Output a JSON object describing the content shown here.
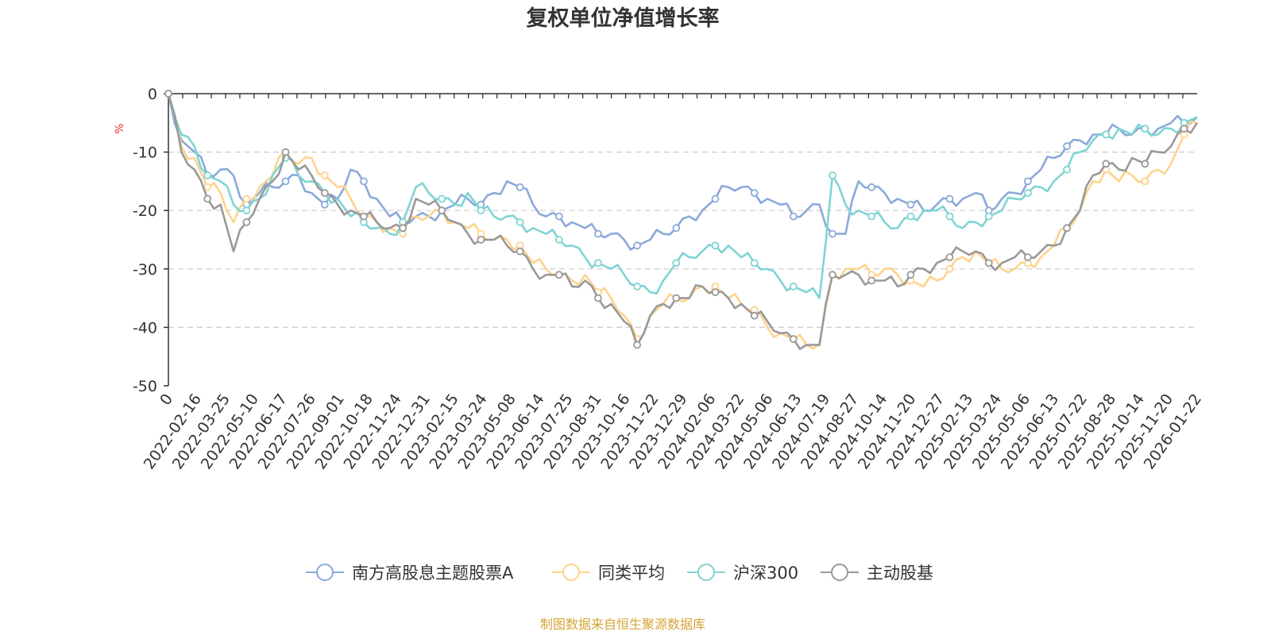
{
  "chart_data": {
    "type": "line",
    "title": "复权单位净值增长率",
    "unit_label": "%",
    "ylim": [
      -50,
      0
    ],
    "y_ticks": [
      0,
      -10,
      -20,
      -30,
      -40,
      -50
    ],
    "y_tick_labels": [
      "0",
      "-10",
      "-20",
      "-30",
      "-40",
      "-50"
    ],
    "x_tick_labels": [
      "0",
      "2022-02-16",
      "2022-03-25",
      "2022-05-10",
      "2022-06-17",
      "2022-07-26",
      "2022-09-01",
      "2022-10-18",
      "2022-11-24",
      "2022-12-31",
      "2023-02-15",
      "2023-03-24",
      "2023-05-08",
      "2023-06-14",
      "2023-07-25",
      "2023-08-31",
      "2023-10-16",
      "2023-11-22",
      "2023-12-29",
      "2024-02-06",
      "2024-03-22",
      "2024-05-06",
      "2024-06-13",
      "2024-07-19",
      "2024-08-27",
      "2024-10-14",
      "2024-11-20",
      "2024-12-27",
      "2025-02-13",
      "2025-03-24",
      "2025-05-06",
      "2025-06-13",
      "2025-07-22",
      "2025-08-28",
      "2025-10-14",
      "2025-11-20",
      "2026-01-22"
    ],
    "grid": "horizontal-dashed",
    "legend_position": "bottom",
    "series": [
      {
        "name": "南方高股息主题股票A",
        "color": "#8ba9d9",
        "values": [
          0,
          -8,
          -10,
          -14,
          -13,
          -14,
          -19,
          -17,
          -16,
          -15,
          -14,
          -17,
          -19,
          -18,
          -13,
          -15,
          -18,
          -21,
          -22,
          -21,
          -21,
          -20,
          -19,
          -18,
          -19,
          -17,
          -15,
          -16,
          -19,
          -21,
          -21,
          -22,
          -23,
          -24,
          -24,
          -25,
          -26,
          -25,
          -24,
          -23,
          -21,
          -20,
          -18,
          -16,
          -16,
          -17,
          -18,
          -19,
          -21,
          -20,
          -19,
          -24,
          -24,
          -15,
          -16,
          -17,
          -18,
          -19,
          -20,
          -19,
          -18,
          -18,
          -17,
          -20,
          -18,
          -17,
          -15,
          -13,
          -11,
          -9,
          -8,
          -7,
          -7,
          -6,
          -7,
          -6,
          -6,
          -5,
          -5,
          -4
        ]
      },
      {
        "name": "同类平均",
        "color": "#fdd38d",
        "values": [
          0,
          -9,
          -11,
          -16,
          -17,
          -22,
          -18,
          -16,
          -14,
          -10,
          -12,
          -11,
          -14,
          -16,
          -18,
          -21,
          -22,
          -23,
          -24,
          -21,
          -21,
          -20,
          -22,
          -23,
          -24,
          -25,
          -25,
          -26,
          -29,
          -30,
          -31,
          -32,
          -31,
          -34,
          -35,
          -38,
          -42,
          -38,
          -36,
          -35,
          -35,
          -33,
          -33,
          -35,
          -36,
          -37,
          -40,
          -41,
          -42,
          -43,
          -43,
          -31,
          -30,
          -30,
          -31,
          -30,
          -31,
          -32,
          -33,
          -32,
          -30,
          -28,
          -27,
          -29,
          -30,
          -30,
          -29,
          -28,
          -26,
          -23,
          -20,
          -15,
          -13,
          -15,
          -14,
          -15,
          -13,
          -12,
          -7,
          -5
        ]
      },
      {
        "name": "沪深300",
        "color": "#7fd4d4",
        "values": [
          0,
          -7,
          -9,
          -14,
          -15,
          -19,
          -20,
          -18,
          -14,
          -11,
          -14,
          -15,
          -17,
          -18,
          -21,
          -22,
          -23,
          -24,
          -22,
          -16,
          -17,
          -18,
          -19,
          -17,
          -20,
          -21,
          -21,
          -22,
          -23,
          -24,
          -25,
          -26,
          -28,
          -29,
          -30,
          -31,
          -33,
          -34,
          -32,
          -29,
          -28,
          -27,
          -26,
          -26,
          -28,
          -29,
          -30,
          -32,
          -33,
          -34,
          -35,
          -14,
          -19,
          -20,
          -21,
          -22,
          -23,
          -21,
          -20,
          -20,
          -21,
          -23,
          -22,
          -21,
          -20,
          -18,
          -17,
          -16,
          -15,
          -13,
          -10,
          -8,
          -7,
          -6,
          -7,
          -6,
          -7,
          -6,
          -5,
          -4
        ]
      },
      {
        "name": "主动股基",
        "color": "#999999",
        "values": [
          0,
          -10,
          -13,
          -18,
          -19,
          -27,
          -22,
          -18,
          -15,
          -10,
          -13,
          -14,
          -17,
          -19,
          -20,
          -21,
          -22,
          -23,
          -23,
          -18,
          -19,
          -20,
          -22,
          -24,
          -25,
          -25,
          -26,
          -27,
          -30,
          -31,
          -31,
          -33,
          -32,
          -35,
          -36,
          -39,
          -43,
          -38,
          -36,
          -35,
          -35,
          -33,
          -34,
          -35,
          -36,
          -38,
          -39,
          -41,
          -42,
          -43,
          -43,
          -31,
          -31,
          -31,
          -32,
          -32,
          -33,
          -31,
          -30,
          -29,
          -28,
          -27,
          -27,
          -29,
          -29,
          -28,
          -28,
          -27,
          -26,
          -23,
          -20,
          -14,
          -12,
          -13,
          -11,
          -12,
          -10,
          -9,
          -6,
          -5
        ]
      }
    ]
  },
  "footer": {
    "source": "制图数据来自恒生聚源数据库",
    "source_color": "#d4a437"
  }
}
